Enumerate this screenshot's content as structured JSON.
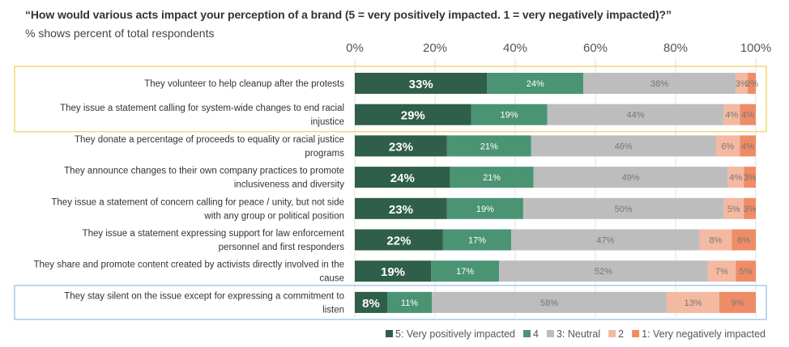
{
  "chart_data": {
    "type": "bar",
    "orientation": "horizontal",
    "stacked": true,
    "title": "“How would various acts impact your perception of a brand (5 = very positively impacted. 1 = very negatively impacted)?”",
    "subtitle": "% shows percent of total respondents",
    "xlim": [
      0,
      100
    ],
    "xticks": [
      "0%",
      "20%",
      "40%",
      "60%",
      "80%",
      "100%"
    ],
    "grid": true,
    "legend_position": "bottom-right",
    "categories": [
      "They volunteer to help cleanup after the protests",
      "They issue a statement calling for system-wide changes to end racial injustice",
      "They donate a percentage of proceeds to equality or racial justice programs",
      "They announce changes to their own company practices to promote inclusiveness and diversity",
      "They issue a statement of concern calling for peace / unity, but not side with any group or political position",
      "They issue a statement expressing support for law enforcement personnel and first responders",
      "They share and promote content created by activists directly involved in the cause",
      "They stay silent on the issue except for expressing a commitment to listen"
    ],
    "category_lines": [
      [
        "They volunteer to help cleanup after the protests"
      ],
      [
        "They issue a statement calling for system-wide changes to end racial",
        "injustice"
      ],
      [
        "They donate a percentage of proceeds to equality or racial justice",
        "programs"
      ],
      [
        "They announce changes to their own company practices to promote",
        "inclusiveness and diversity"
      ],
      [
        "They issue a statement of concern calling for peace / unity, but not side",
        "with any group or political position"
      ],
      [
        "They issue a statement expressing support for law enforcement",
        "personnel and first responders"
      ],
      [
        "They share and promote content created by activists directly involved in the",
        "cause"
      ],
      [
        "They stay silent on the issue except for expressing a commitment to",
        "listen"
      ]
    ],
    "series": [
      {
        "name": "5: Very positively impacted",
        "color": "#2f5e4a",
        "values": [
          33,
          29,
          23,
          24,
          23,
          22,
          19,
          8
        ]
      },
      {
        "name": "4",
        "color": "#4a9473",
        "values": [
          24,
          19,
          21,
          21,
          19,
          17,
          17,
          11
        ]
      },
      {
        "name": "3: Neutral",
        "color": "#bdbdbd",
        "values": [
          38,
          44,
          46,
          49,
          50,
          47,
          52,
          58
        ]
      },
      {
        "name": "2",
        "color": "#f4b9a1",
        "values": [
          3,
          4,
          6,
          4,
          5,
          8,
          7,
          13
        ]
      },
      {
        "name": "1: Very negatively impacted",
        "color": "#ef8c67",
        "values": [
          2,
          4,
          4,
          3,
          3,
          6,
          5,
          9
        ]
      }
    ],
    "highlights": [
      {
        "rows": [
          0,
          1
        ],
        "color": "#f7d774"
      },
      {
        "rows": [
          7
        ],
        "color": "#a9c9ea"
      }
    ]
  }
}
